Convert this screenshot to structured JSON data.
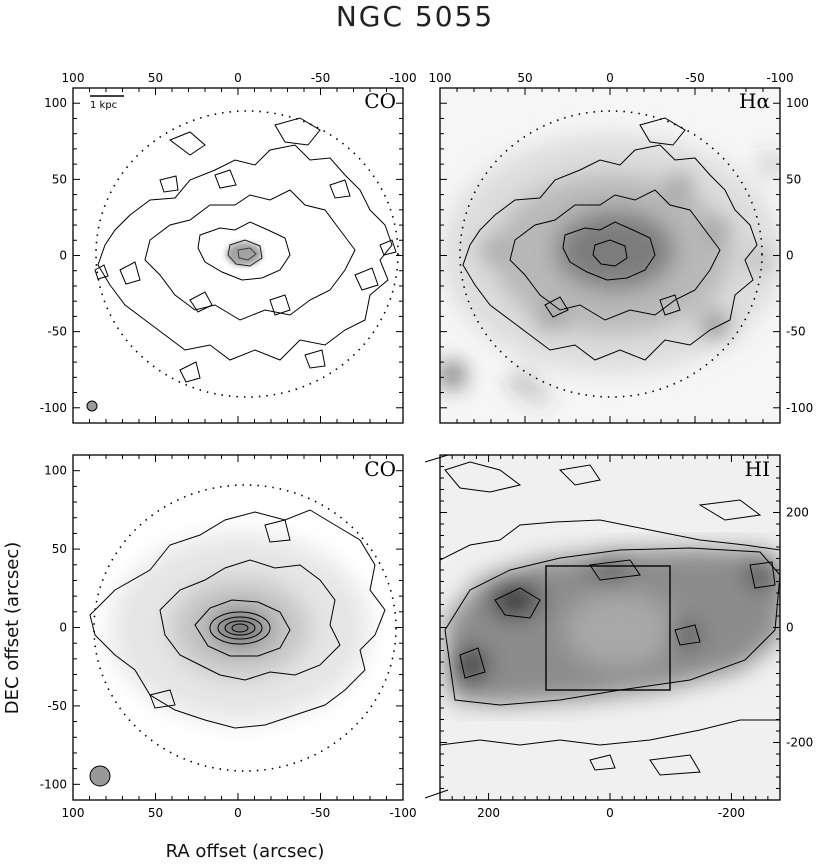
{
  "figure": {
    "title": "NGC 5055",
    "xlabel": "RA offset (arcsec)",
    "ylabel": "DEC offset (arcsec)",
    "scale_bar_label": "1 kpc"
  },
  "panels": [
    {
      "label": "CO",
      "x_ticks": [
        "100",
        "50",
        "0",
        "-50",
        "-100"
      ],
      "y_ticks": [
        "100",
        "50",
        "0",
        "-50",
        "-100"
      ],
      "xlim": [
        100,
        -100
      ],
      "ylim": [
        -110,
        110
      ]
    },
    {
      "label": "Hα",
      "x_ticks": [
        "100",
        "50",
        "0",
        "-50",
        "-100"
      ],
      "y_ticks": [
        "100",
        "50",
        "0",
        "-50",
        "-100"
      ],
      "xlim": [
        100,
        -100
      ],
      "ylim": [
        -110,
        110
      ]
    },
    {
      "label": "CO",
      "x_ticks": [
        "100",
        "50",
        "0",
        "-50",
        "-100"
      ],
      "y_ticks": [
        "100",
        "50",
        "0",
        "-50",
        "-100"
      ],
      "xlim": [
        100,
        -100
      ],
      "ylim": [
        -110,
        110
      ]
    },
    {
      "label": "HI",
      "x_ticks": [
        "200",
        "0",
        "-200"
      ],
      "y_ticks": [
        "200",
        "0",
        "-200"
      ],
      "xlim": [
        280,
        -280
      ],
      "ylim": [
        -300,
        300
      ]
    }
  ],
  "colors": {
    "ink": "#000000",
    "halo_dark": "#1a1a1a",
    "hi_gray": "#7a7a7a",
    "beam": "#999999"
  }
}
